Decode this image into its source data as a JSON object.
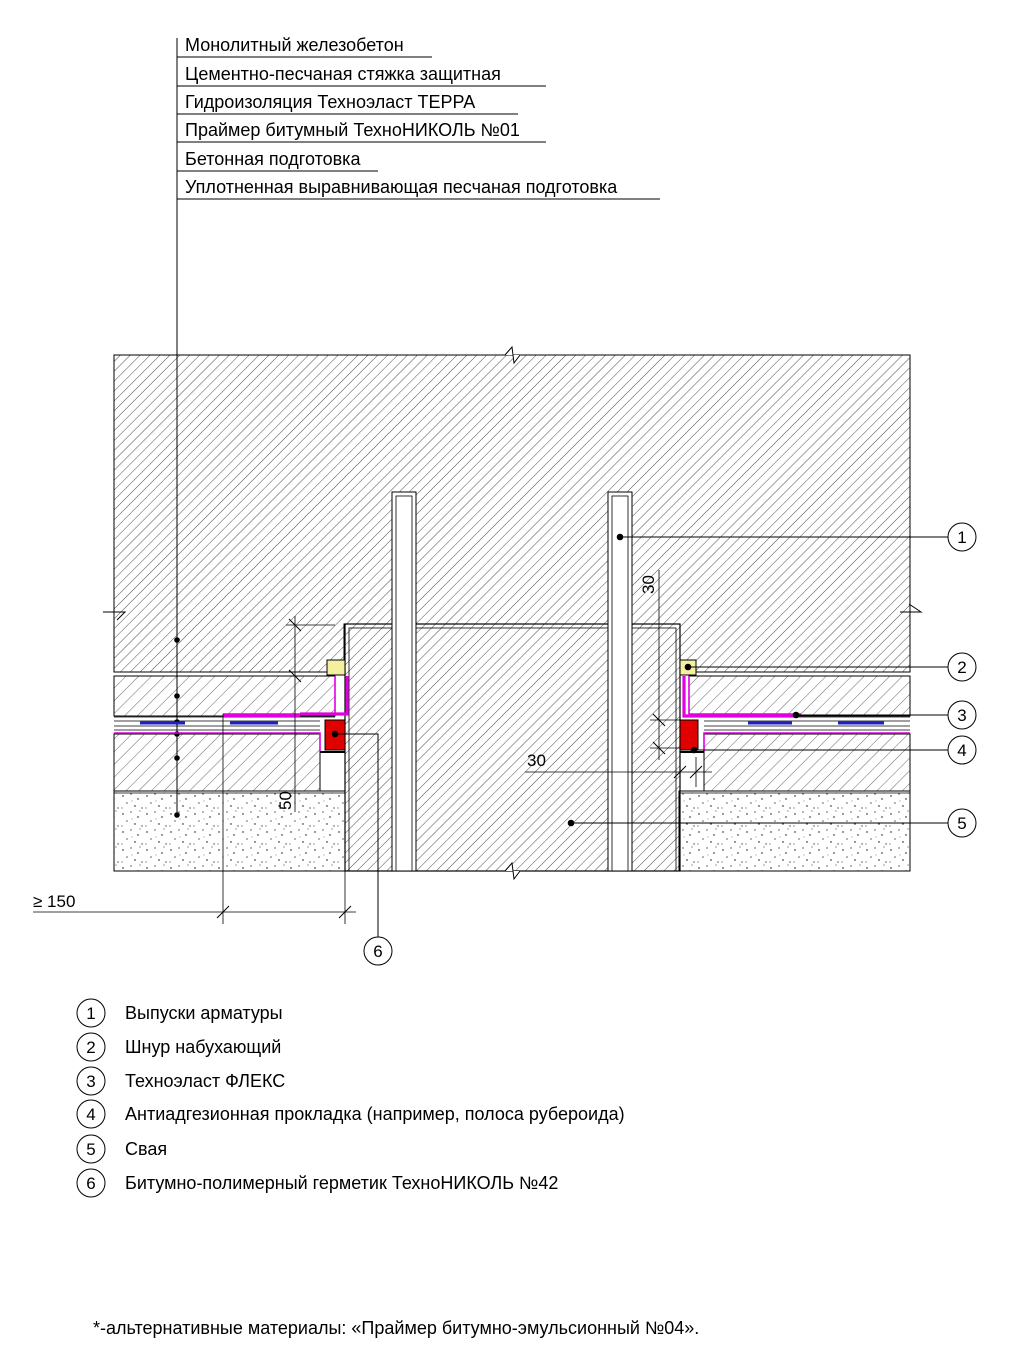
{
  "layers": [
    "Монолитный железобетон",
    "Цементно-песчаная стяжка защитная",
    "Гидроизоляция Техноэласт ТЕРРА",
    "Праймер битумный ТехноНИКОЛЬ №01",
    "Бетонная подготовка",
    "Уплотненная выравнивающая песчаная подготовка"
  ],
  "callouts": [
    "1",
    "2",
    "3",
    "4",
    "5",
    "6"
  ],
  "dimensions": {
    "d30_vertical": "30",
    "d30_horizontal": "30",
    "d50": "50",
    "d150": "≥ 150"
  },
  "legend": [
    {
      "num": "1",
      "text": "Выпуски арматуры"
    },
    {
      "num": "2",
      "text": "Шнур набухающий"
    },
    {
      "num": "3",
      "text": "Техноэласт ФЛЕКС"
    },
    {
      "num": "4",
      "text": "Антиадгезионная прокладка (например, полоса рубероида)"
    },
    {
      "num": "5",
      "text": "Свая"
    },
    {
      "num": "6",
      "text": "Битумно-полимерный герметик ТехноНИКОЛЬ №42"
    }
  ],
  "footnote": "*-альтернативные материалы: «Праймер битумно-эмульсионный №04».",
  "colors": {
    "membrane": "#e000e0",
    "sealant": "#e00000",
    "cord": "#f4f0a0",
    "primer": "#2020c0",
    "line": "#000000"
  }
}
